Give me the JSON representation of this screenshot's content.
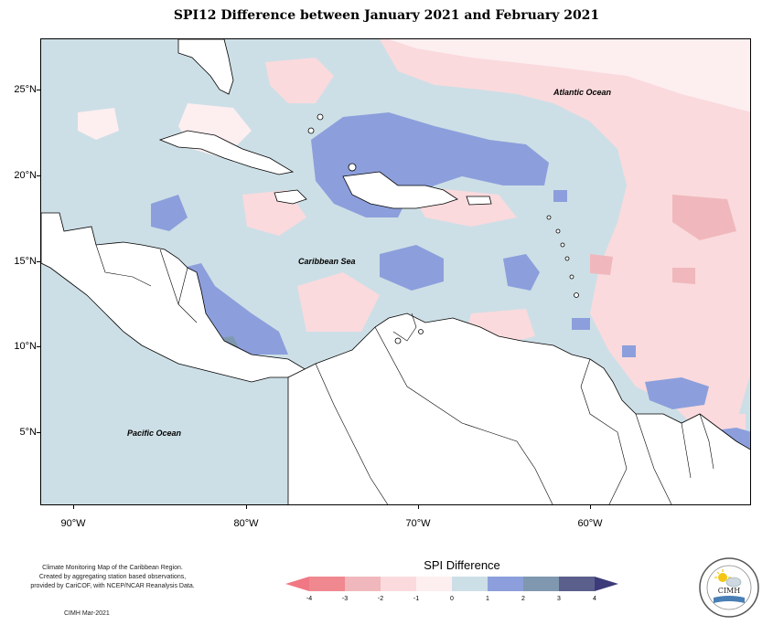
{
  "title": "SPI12 Difference between January 2021 and February 2021",
  "map": {
    "region": "Caribbean",
    "lon_range": [
      -92,
      -52
    ],
    "lat_range": [
      1,
      28
    ],
    "latitude_labels": [
      "25°N",
      "20°N",
      "15°N",
      "10°N",
      "5°N"
    ],
    "longitude_labels": [
      "90°W",
      "80°W",
      "70°W",
      "60°W"
    ],
    "place_labels": {
      "atlantic": "Atlantic Ocean",
      "caribbean": "Caribbean Sea",
      "pacific": "Pacific Ocean"
    }
  },
  "legend": {
    "title": "SPI Difference",
    "ticks": [
      "-4",
      "-3",
      "-2",
      "-1",
      "0",
      "1",
      "2",
      "3",
      "4"
    ],
    "colors": [
      "#f0888f",
      "#f0b8bc",
      "#fadadd",
      "#fdeef0",
      "#cddfe6",
      "#8c9fdc",
      "#7f98b0",
      "#5a5f8c"
    ],
    "under_color": "#f07884",
    "over_color": "#3d3a7a"
  },
  "credits": {
    "line1": "Climate Monitoring Map of the Caribbean Region.",
    "line2": "Created by aggregating station based observations,",
    "line3": "provided by CariCOF, with NCEP/NCAR Reanalysis Data.",
    "date": "CIMH Mar-2021"
  },
  "logo": {
    "text": "CIMH",
    "icon": "cimh-logo-icon"
  }
}
